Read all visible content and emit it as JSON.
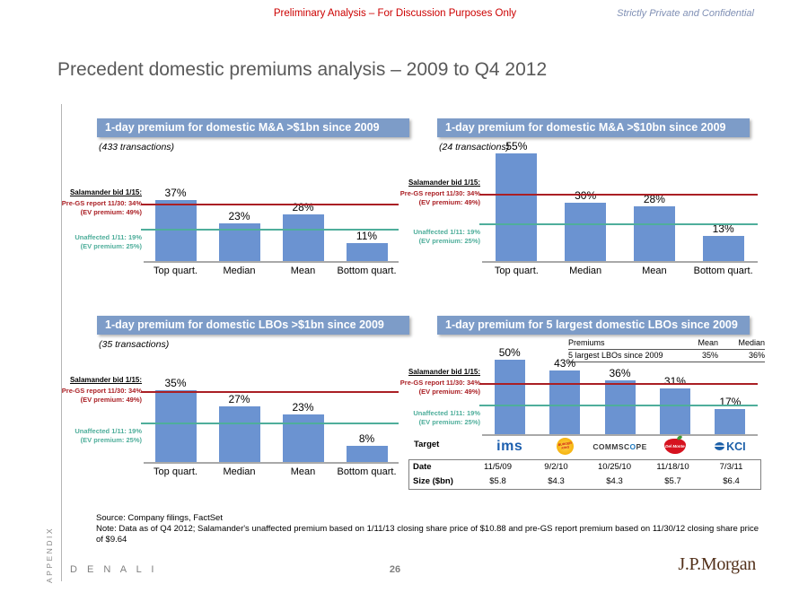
{
  "header": {
    "disclaimer": "Preliminary Analysis – For Discussion Purposes Only",
    "confidential": "Strictly Private and Confidential",
    "title": "Precedent domestic premiums analysis – 2009 to Q4 2012"
  },
  "annotations": {
    "salamander": "Salamander bid 1/15:",
    "pregs_line1": "Pre-GS report 11/30: 34%",
    "pregs_line2": "(EV premium: 49%)",
    "unaffected_line1": "Unaffected 1/11: 19%",
    "unaffected_line2": "(EV premium: 25%)"
  },
  "colors": {
    "bar": "#6b93d1",
    "header_bar": "#7d9cc8",
    "red_line": "#aa1f24",
    "teal_line": "#4fae9b",
    "disclaimer_red": "#cc0000",
    "confidential_blue": "#8090b5",
    "jpmorgan_brown": "#52301a"
  },
  "chart_data": [
    {
      "type": "bar",
      "title": "1-day premium for domestic M&A >$1bn since 2009",
      "subtitle": "(433 transactions)",
      "categories": [
        "Top quart.",
        "Median",
        "Mean",
        "Bottom quart."
      ],
      "values": [
        37,
        23,
        28,
        11
      ],
      "unit": "%",
      "annotation": "Salamander bid 1/15:",
      "ref_lines": [
        {
          "name": "pre-gs-report-line",
          "value": 34,
          "color": "#aa1f24"
        },
        {
          "name": "unaffected-line",
          "value": 19,
          "color": "#4fae9b"
        }
      ]
    },
    {
      "type": "bar",
      "title": "1-day premium for domestic M&A >$10bn since 2009",
      "subtitle": "(24 transactions)",
      "categories": [
        "Top quart.",
        "Median",
        "Mean",
        "Bottom quart."
      ],
      "values": [
        55,
        30,
        28,
        13
      ],
      "unit": "%",
      "annotation": "Salamander bid 1/15:",
      "ref_lines": [
        {
          "name": "pre-gs-report-line",
          "value": 34,
          "color": "#aa1f24"
        },
        {
          "name": "unaffected-line",
          "value": 19,
          "color": "#4fae9b"
        }
      ]
    },
    {
      "type": "bar",
      "title": "1-day premium for domestic LBOs >$1bn since 2009",
      "subtitle": "(35 transactions)",
      "categories": [
        "Top quart.",
        "Median",
        "Mean",
        "Bottom quart."
      ],
      "values": [
        35,
        27,
        23,
        8
      ],
      "unit": "%",
      "annotation": "Salamander bid 1/15:",
      "ref_lines": [
        {
          "name": "pre-gs-report-line",
          "value": 34,
          "color": "#aa1f24"
        },
        {
          "name": "unaffected-line",
          "value": 19,
          "color": "#4fae9b"
        }
      ]
    },
    {
      "type": "bar",
      "title": "1-day premium for 5 largest domestic LBOs since 2009",
      "subtitle": "",
      "show_categories": false,
      "categories": [
        "IMS",
        "Burger King",
        "CommScope",
        "Del Monte",
        "KCI"
      ],
      "values": [
        50,
        43,
        36,
        31,
        17
      ],
      "unit": "%",
      "annotation": "Salamander bid 1/15:",
      "ref_lines": [
        {
          "name": "pre-gs-report-line",
          "value": 34,
          "color": "#aa1f24"
        },
        {
          "name": "unaffected-line",
          "value": 19,
          "color": "#4fae9b"
        }
      ],
      "summary_table": {
        "headers": [
          "Premiums",
          "Mean",
          "Median"
        ],
        "row": [
          "5 largest LBOs since 2009",
          "35%",
          "36%"
        ]
      },
      "target_label": "Target",
      "logos": {
        "ims": "ims",
        "bk_line1": "BURGER",
        "bk_line2": "KING",
        "cs_pre": "COMMSC",
        "cs_o": "O",
        "cs_post": "PE",
        "delmonte": "Del Monte",
        "kci": "KCI"
      },
      "detail_table": {
        "date_label": "Date",
        "size_label": "Size ($bn)",
        "dates": [
          "11/5/09",
          "9/2/10",
          "10/25/10",
          "11/18/10",
          "7/3/11"
        ],
        "sizes": [
          "$5.8",
          "$4.3",
          "$4.3",
          "$5.7",
          "$6.4"
        ]
      }
    }
  ],
  "footer": {
    "source": "Source: Company filings, FactSet",
    "note": "Note: Data as of Q4 2012; Salamander's unaffected premium based on 1/11/13 closing share price of $10.88 and pre-GS report premium based on 11/30/12 closing share price of $9.64",
    "deal_code": "D E N A L I",
    "page_number": "26",
    "bank_logo": "J.P.Morgan",
    "section": "APPENDIX"
  }
}
